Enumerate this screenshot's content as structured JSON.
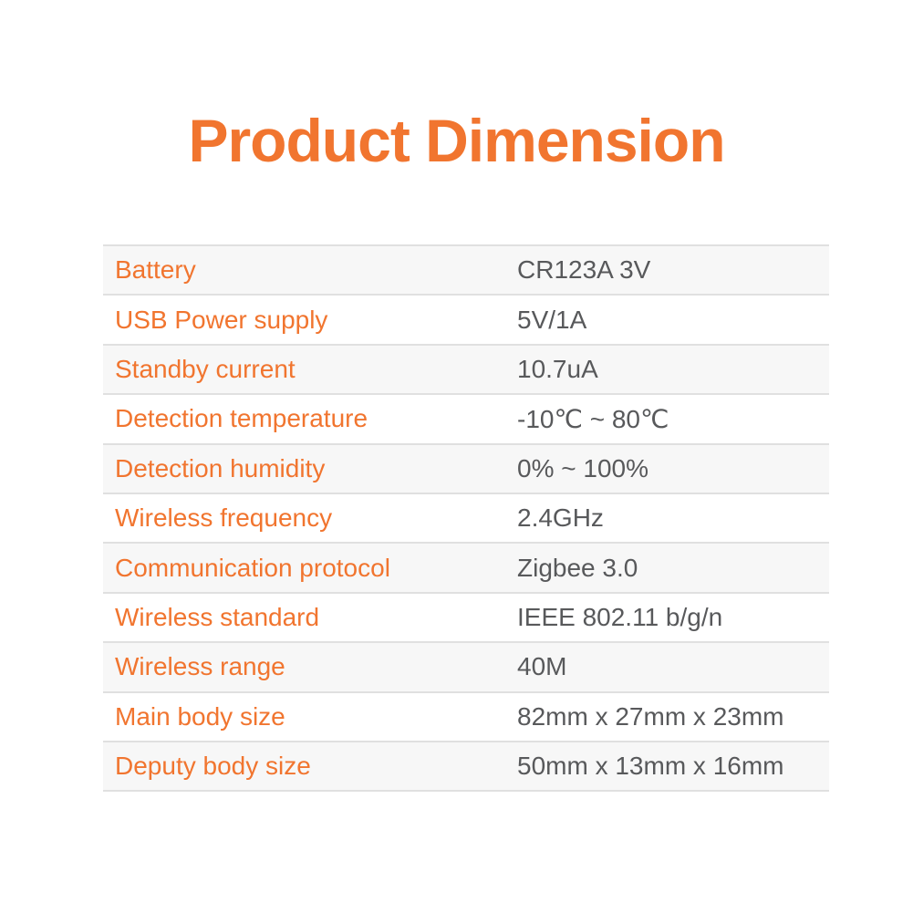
{
  "theme": {
    "page_bg": "#ffffff",
    "accent_orange": "#f1752f",
    "value_gray": "#58595b",
    "alt_row_bg": "#f7f7f7",
    "divider": "#e0e0e0"
  },
  "title": {
    "text": "Product Dimension"
  },
  "spec_table": {
    "rows": [
      {
        "label": "Battery",
        "value": "CR123A 3V"
      },
      {
        "label": "USB Power supply",
        "value": "5V/1A"
      },
      {
        "label": "Standby current",
        "value": "10.7uA"
      },
      {
        "label": "Detection temperature",
        "value": "-10℃ ~ 80℃"
      },
      {
        "label": "Detection humidity",
        "value": "0% ~ 100%"
      },
      {
        "label": "Wireless frequency",
        "value": "2.4GHz"
      },
      {
        "label": "Communication protocol",
        "value": "Zigbee 3.0"
      },
      {
        "label": "Wireless standard",
        "value": "IEEE 802.11 b/g/n"
      },
      {
        "label": "Wireless range",
        "value": "40M"
      },
      {
        "label": "Main body size",
        "value": "82mm x 27mm x 23mm"
      },
      {
        "label": "Deputy body size",
        "value": "50mm x 13mm x 16mm"
      }
    ]
  }
}
